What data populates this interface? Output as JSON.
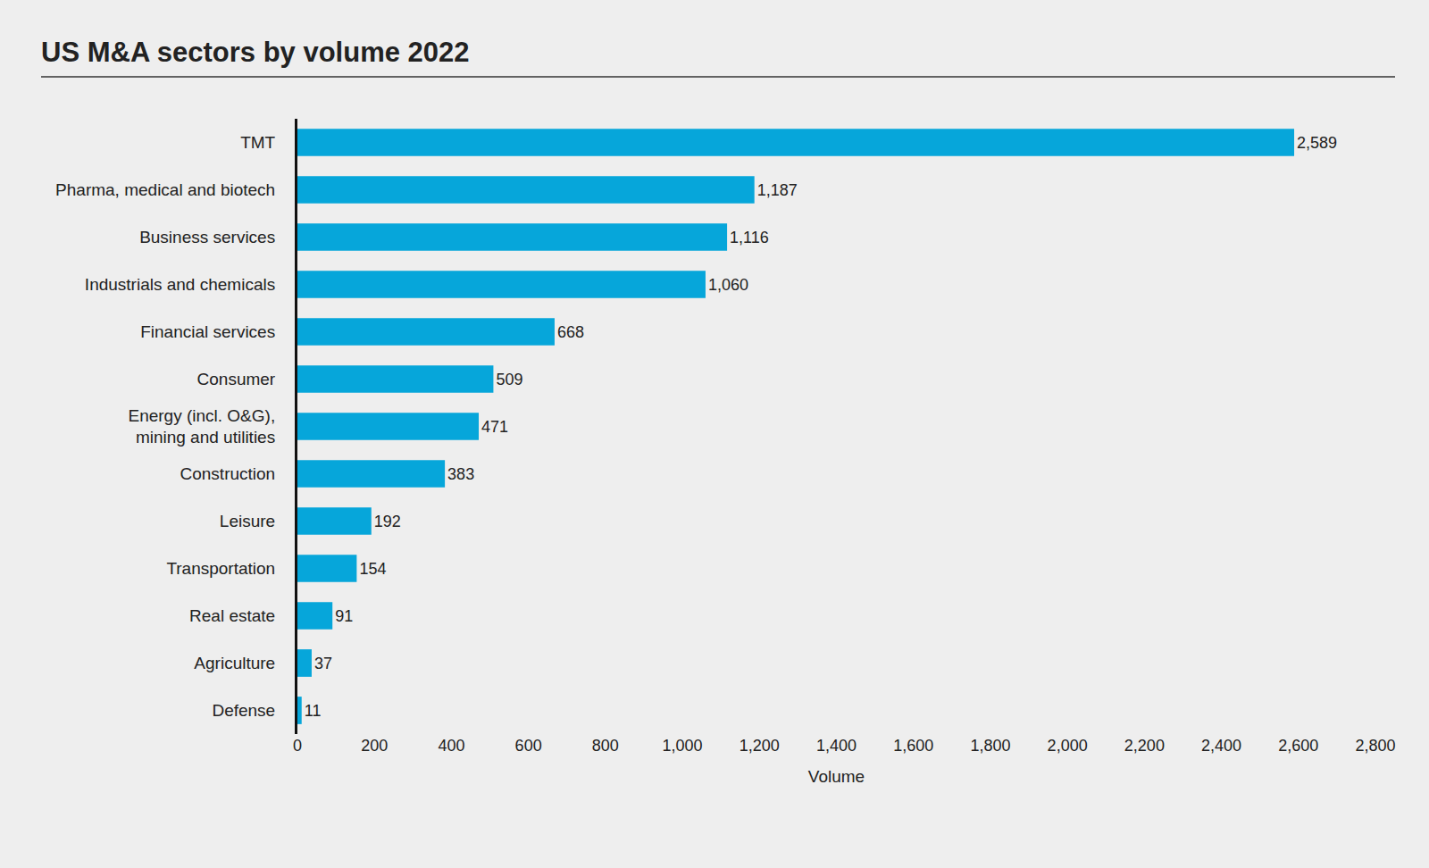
{
  "chart_data": {
    "type": "bar",
    "orientation": "horizontal",
    "title": "US M&A sectors by volume 2022",
    "x_label": "Volume",
    "categories": [
      "TMT",
      "Pharma, medical and biotech",
      "Business services",
      "Industrials and chemicals",
      "Financial services",
      "Consumer",
      "Energy (incl. O&G),\nmining and utilities",
      "Construction",
      "Leisure",
      "Transportation",
      "Real estate",
      "Agriculture",
      "Defense"
    ],
    "values": [
      2589,
      1187,
      1116,
      1060,
      668,
      509,
      471,
      383,
      192,
      154,
      91,
      37,
      11
    ],
    "value_labels": [
      "2,589",
      "1,187",
      "1,116",
      "1,060",
      "668",
      "509",
      "471",
      "383",
      "192",
      "154",
      "91",
      "37",
      "11"
    ],
    "data_labels": true,
    "color": "#06a6da",
    "xlim": [
      0,
      2800
    ],
    "xticks": [
      0,
      200,
      400,
      600,
      800,
      {
        "value": 1000,
        "label": "1,000"
      },
      {
        "value": 1200,
        "label": "1,200"
      },
      {
        "value": 1400,
        "label": "1,400"
      },
      {
        "value": 1600,
        "label": "1,600"
      },
      {
        "value": 1800,
        "label": "1,800"
      },
      {
        "value": 2000,
        "label": "2,000"
      },
      {
        "value": 2200,
        "label": "2,200"
      },
      {
        "value": 2400,
        "label": "2,400"
      },
      {
        "value": 2600,
        "label": "2,600"
      },
      {
        "value": 2800,
        "label": "2,800"
      }
    ],
    "grid": false
  }
}
